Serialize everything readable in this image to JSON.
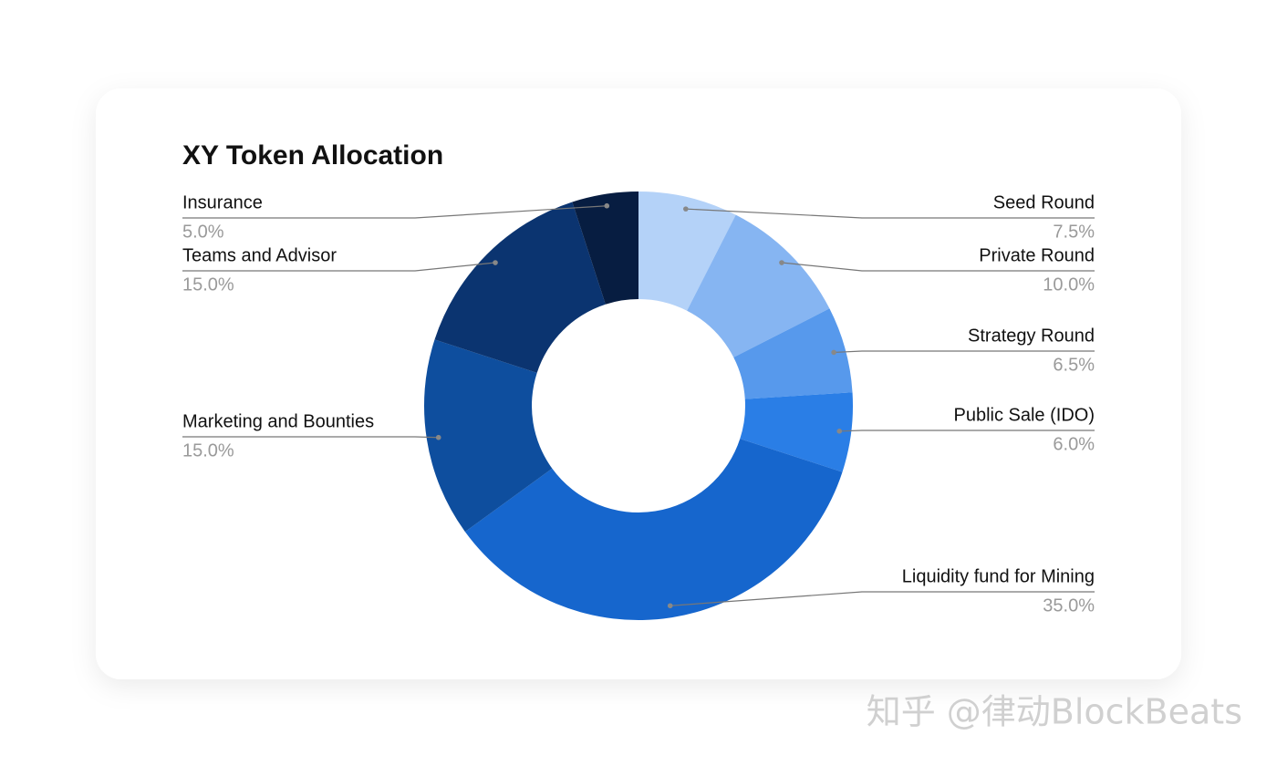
{
  "chart_data": {
    "type": "donut",
    "title": "XY Token Allocation",
    "categories": [
      "Seed Round",
      "Private Round",
      "Strategy Round",
      "Public Sale (IDO)",
      "Liquidity fund for Mining",
      "Marketing and Bounties",
      "Teams and Advisor",
      "Insurance"
    ],
    "values": [
      7.5,
      10,
      6.5,
      6,
      35,
      15,
      15,
      5
    ],
    "value_labels": [
      "7.5%",
      "10.0%",
      "6.5%",
      "6.0%",
      "35.0%",
      "15.0%",
      "15.0%",
      "5.0%"
    ],
    "colors": [
      "#b4d2f8",
      "#86b5f2",
      "#5799ec",
      "#2a7ee6",
      "#1666cd",
      "#0e4e9e",
      "#0b3470",
      "#071d41"
    ]
  },
  "watermark": "知乎 @律动BlockBeats"
}
